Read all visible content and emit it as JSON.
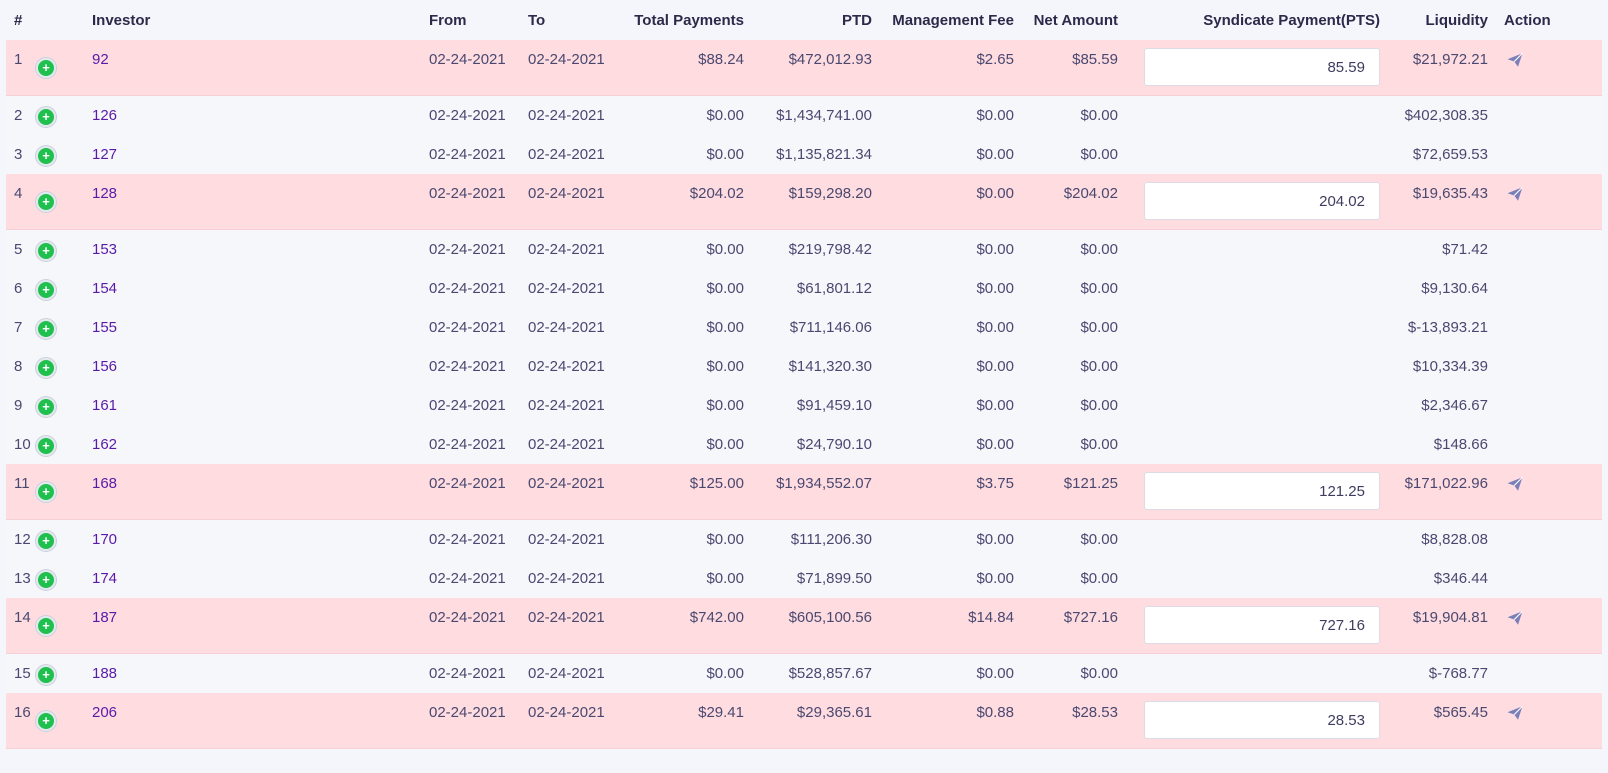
{
  "colors": {
    "highlight_row": "#fedce0",
    "link": "#5a1aa8",
    "plus_icon": "#20c04f",
    "send_icon": "#7b7fb8"
  },
  "headers": {
    "index": "#",
    "investor": "Investor",
    "from": "From",
    "to": "To",
    "total_payments": "Total Payments",
    "ptd": "PTD",
    "management_fee": "Management Fee",
    "net_amount": "Net Amount",
    "syndicate_payment": "Syndicate Payment(PTS)",
    "liquidity": "Liquidity",
    "action": "Action"
  },
  "rows": [
    {
      "index": "1",
      "investor": "92",
      "from": "02-24-2021",
      "to": "02-24-2021",
      "total_payments": "$88.24",
      "ptd": "$472,012.93",
      "management_fee": "$2.65",
      "net_amount": "$85.59",
      "pts": "85.59",
      "liquidity": "$21,972.21"
    },
    {
      "index": "2",
      "investor": "126",
      "from": "02-24-2021",
      "to": "02-24-2021",
      "total_payments": "$0.00",
      "ptd": "$1,434,741.00",
      "management_fee": "$0.00",
      "net_amount": "$0.00",
      "pts": null,
      "liquidity": "$402,308.35"
    },
    {
      "index": "3",
      "investor": "127",
      "from": "02-24-2021",
      "to": "02-24-2021",
      "total_payments": "$0.00",
      "ptd": "$1,135,821.34",
      "management_fee": "$0.00",
      "net_amount": "$0.00",
      "pts": null,
      "liquidity": "$72,659.53"
    },
    {
      "index": "4",
      "investor": "128",
      "from": "02-24-2021",
      "to": "02-24-2021",
      "total_payments": "$204.02",
      "ptd": "$159,298.20",
      "management_fee": "$0.00",
      "net_amount": "$204.02",
      "pts": "204.02",
      "liquidity": "$19,635.43"
    },
    {
      "index": "5",
      "investor": "153",
      "from": "02-24-2021",
      "to": "02-24-2021",
      "total_payments": "$0.00",
      "ptd": "$219,798.42",
      "management_fee": "$0.00",
      "net_amount": "$0.00",
      "pts": null,
      "liquidity": "$71.42"
    },
    {
      "index": "6",
      "investor": "154",
      "from": "02-24-2021",
      "to": "02-24-2021",
      "total_payments": "$0.00",
      "ptd": "$61,801.12",
      "management_fee": "$0.00",
      "net_amount": "$0.00",
      "pts": null,
      "liquidity": "$9,130.64"
    },
    {
      "index": "7",
      "investor": "155",
      "from": "02-24-2021",
      "to": "02-24-2021",
      "total_payments": "$0.00",
      "ptd": "$711,146.06",
      "management_fee": "$0.00",
      "net_amount": "$0.00",
      "pts": null,
      "liquidity": "$-13,893.21"
    },
    {
      "index": "8",
      "investor": "156",
      "from": "02-24-2021",
      "to": "02-24-2021",
      "total_payments": "$0.00",
      "ptd": "$141,320.30",
      "management_fee": "$0.00",
      "net_amount": "$0.00",
      "pts": null,
      "liquidity": "$10,334.39"
    },
    {
      "index": "9",
      "investor": "161",
      "from": "02-24-2021",
      "to": "02-24-2021",
      "total_payments": "$0.00",
      "ptd": "$91,459.10",
      "management_fee": "$0.00",
      "net_amount": "$0.00",
      "pts": null,
      "liquidity": "$2,346.67"
    },
    {
      "index": "10",
      "investor": "162",
      "from": "02-24-2021",
      "to": "02-24-2021",
      "total_payments": "$0.00",
      "ptd": "$24,790.10",
      "management_fee": "$0.00",
      "net_amount": "$0.00",
      "pts": null,
      "liquidity": "$148.66"
    },
    {
      "index": "11",
      "investor": "168",
      "from": "02-24-2021",
      "to": "02-24-2021",
      "total_payments": "$125.00",
      "ptd": "$1,934,552.07",
      "management_fee": "$3.75",
      "net_amount": "$121.25",
      "pts": "121.25",
      "liquidity": "$171,022.96"
    },
    {
      "index": "12",
      "investor": "170",
      "from": "02-24-2021",
      "to": "02-24-2021",
      "total_payments": "$0.00",
      "ptd": "$111,206.30",
      "management_fee": "$0.00",
      "net_amount": "$0.00",
      "pts": null,
      "liquidity": "$8,828.08"
    },
    {
      "index": "13",
      "investor": "174",
      "from": "02-24-2021",
      "to": "02-24-2021",
      "total_payments": "$0.00",
      "ptd": "$71,899.50",
      "management_fee": "$0.00",
      "net_amount": "$0.00",
      "pts": null,
      "liquidity": "$346.44"
    },
    {
      "index": "14",
      "investor": "187",
      "from": "02-24-2021",
      "to": "02-24-2021",
      "total_payments": "$742.00",
      "ptd": "$605,100.56",
      "management_fee": "$14.84",
      "net_amount": "$727.16",
      "pts": "727.16",
      "liquidity": "$19,904.81"
    },
    {
      "index": "15",
      "investor": "188",
      "from": "02-24-2021",
      "to": "02-24-2021",
      "total_payments": "$0.00",
      "ptd": "$528,857.67",
      "management_fee": "$0.00",
      "net_amount": "$0.00",
      "pts": null,
      "liquidity": "$-768.77"
    },
    {
      "index": "16",
      "investor": "206",
      "from": "02-24-2021",
      "to": "02-24-2021",
      "total_payments": "$29.41",
      "ptd": "$29,365.61",
      "management_fee": "$0.88",
      "net_amount": "$28.53",
      "pts": "28.53",
      "liquidity": "$565.45"
    }
  ]
}
